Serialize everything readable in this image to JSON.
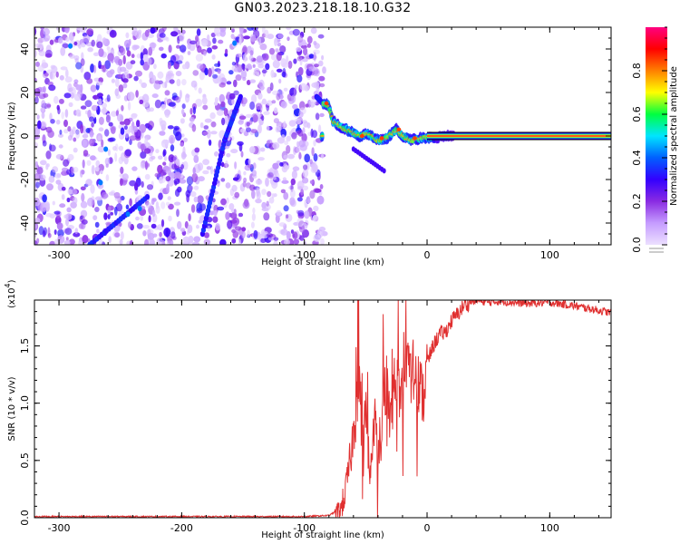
{
  "figure_title": "GN03.2023.218.18.10.G32",
  "chart_data": [
    {
      "type": "heatmap",
      "title": "",
      "xlabel": "Height of straight line (km)",
      "ylabel": "Frequency (Hz)",
      "xlim": [
        -320,
        150
      ],
      "ylim": [
        -50,
        50
      ],
      "xticks": [
        -300,
        -200,
        -100,
        0,
        100
      ],
      "yticks": [
        -40,
        -20,
        0,
        20,
        40
      ],
      "xtick_labels": [
        "-300",
        "-200",
        "-100",
        "0",
        "100"
      ],
      "ytick_labels": [
        "-40",
        "-20",
        "0",
        "20",
        "40"
      ],
      "colorbar": {
        "label": "Normalized spectral amplitude",
        "range": [
          0,
          1
        ],
        "ticks": [
          0.0,
          0.2,
          0.4,
          0.6,
          0.8
        ],
        "tick_labels": [
          "0.0",
          "0.2",
          "0.4",
          "0.6",
          "0.8"
        ],
        "colormap": [
          "#ece0ff",
          "#c59cff",
          "#8a2be2",
          "#3300ff",
          "#0060ff",
          "#00e5ff",
          "#00ff40",
          "#ffff00",
          "#ff8000",
          "#ff0000",
          "#ff0080"
        ]
      },
      "noise_region_x": [
        -320,
        -85
      ],
      "signal_track": [
        {
          "x": -85,
          "freq": 15
        },
        {
          "x": -80,
          "freq": 14
        },
        {
          "x": -77,
          "freq": 7
        },
        {
          "x": -70,
          "freq": 4
        },
        {
          "x": -62,
          "freq": 2
        },
        {
          "x": -55,
          "freq": 0
        },
        {
          "x": -48,
          "freq": 1
        },
        {
          "x": -40,
          "freq": -2
        },
        {
          "x": -33,
          "freq": -1
        },
        {
          "x": -25,
          "freq": 3
        },
        {
          "x": -20,
          "freq": 0
        },
        {
          "x": -13,
          "freq": -2
        },
        {
          "x": -5,
          "freq": -1
        },
        {
          "x": 20,
          "freq": 0
        },
        {
          "x": 150,
          "freq": 0
        }
      ],
      "steady_line": {
        "x_start": 0,
        "x_end": 150,
        "freq": 0
      },
      "grid": false
    },
    {
      "type": "line",
      "title": "",
      "xlabel": "Height of straight line (km)",
      "ylabel": "SNR (10 * v/v)",
      "y_multiplier_label": "(x10",
      "y_multiplier_exp": "4",
      "xlim": [
        -320,
        150
      ],
      "ylim": [
        0,
        1.9
      ],
      "xticks": [
        -300,
        -200,
        -100,
        0,
        100
      ],
      "yticks": [
        0.0,
        0.5,
        1.0,
        1.5
      ],
      "xtick_labels": [
        "-300",
        "-200",
        "-100",
        "0",
        "100"
      ],
      "ytick_labels": [
        "0.0",
        "0.5",
        "1.0",
        "1.5"
      ],
      "line_color": "#e03030",
      "series": [
        {
          "x": [
            -320,
            -250,
            -150,
            -100,
            -80,
            -70,
            -66,
            -62,
            -60,
            -58,
            -55,
            -52,
            -50,
            -46,
            -42,
            -40,
            -36,
            -33,
            -30,
            -26,
            -22,
            -18,
            -14,
            -10,
            -6,
            -3,
            0,
            5,
            10,
            15,
            20,
            25,
            30,
            35,
            40,
            50,
            60,
            80,
            100,
            120,
            135,
            150
          ],
          "y": [
            0.01,
            0.01,
            0.01,
            0.01,
            0.02,
            0.08,
            0.25,
            0.55,
            0.75,
            0.9,
            1.1,
            0.6,
            1.0,
            0.35,
            0.9,
            0.4,
            1.0,
            1.2,
            0.8,
            1.3,
            1.05,
            1.35,
            1.25,
            1.3,
            1.15,
            1.05,
            1.35,
            1.5,
            1.6,
            1.62,
            1.72,
            1.78,
            1.85,
            1.88,
            1.9,
            1.88,
            1.89,
            1.87,
            1.88,
            1.85,
            1.82,
            1.79
          ]
        }
      ],
      "grid": false
    }
  ]
}
